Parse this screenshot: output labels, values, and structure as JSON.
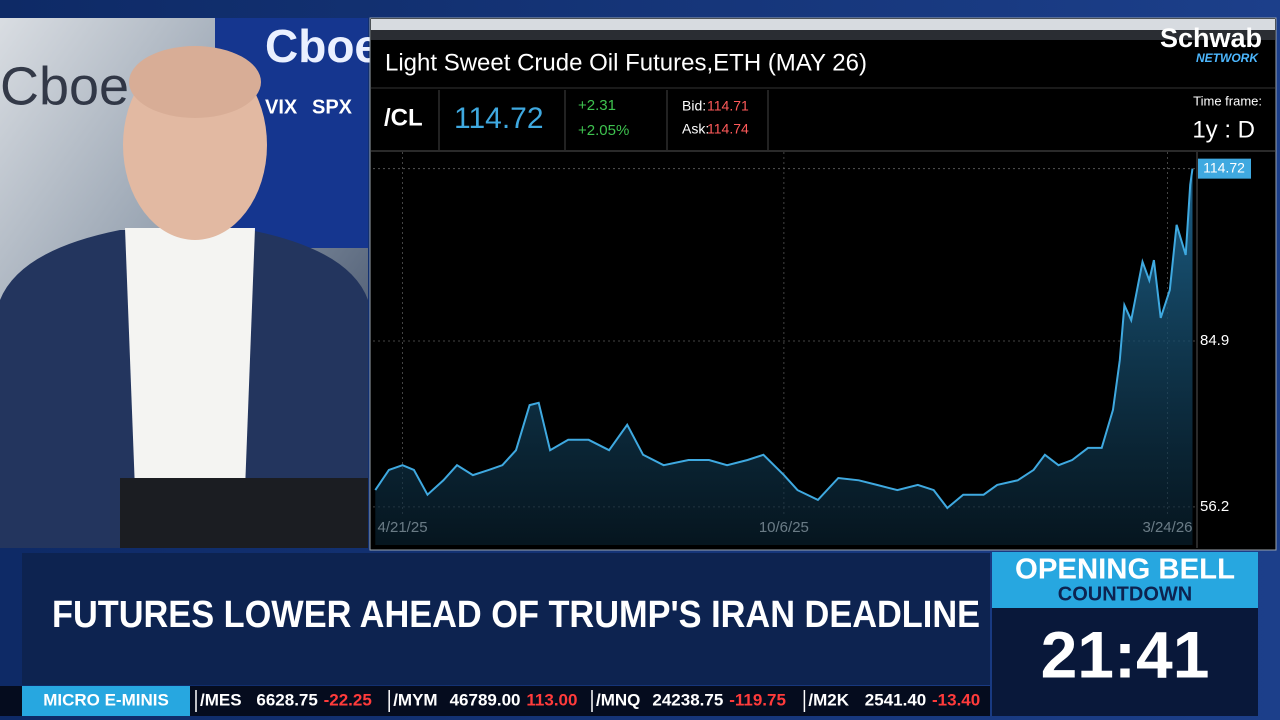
{
  "chart_data": {
    "type": "line",
    "title": "Light Sweet Crude Oil Futures,ETH (MAY 26)",
    "x": [
      "4/9/25",
      "4/15/25",
      "4/21/25",
      "4/26/25",
      "5/2/25",
      "5/9/25",
      "5/15/25",
      "5/22/25",
      "5/29/25",
      "6/4/25",
      "6/10/25",
      "6/16/25",
      "6/20/25",
      "6/25/25",
      "7/3/25",
      "7/12/25",
      "7/21/25",
      "7/29/25",
      "8/5/25",
      "8/14/25",
      "8/25/25",
      "9/3/25",
      "9/11/25",
      "9/20/25",
      "9/27/25",
      "10/6/25",
      "10/12/25",
      "10/21/25",
      "10/30/25",
      "11/8/25",
      "11/16/25",
      "11/25/25",
      "12/4/25",
      "12/11/25",
      "12/17/25",
      "12/24/25",
      "1/2/26",
      "1/8/26",
      "1/17/26",
      "1/24/26",
      "1/29/26",
      "2/4/26",
      "2/10/26",
      "2/17/26",
      "2/23/26",
      "2/28/26",
      "3/3/26",
      "3/5/26",
      "3/8/26",
      "3/13/26",
      "3/16/26",
      "3/18/26",
      "3/21/26",
      "3/25/26",
      "3/28/26",
      "4/1/26",
      "4/3/26",
      "4/4/26"
    ],
    "values": [
      59.1,
      62.6,
      63.4,
      62.6,
      58.3,
      60.8,
      63.4,
      61.7,
      62.6,
      63.4,
      66.0,
      73.8,
      74.2,
      66.0,
      67.8,
      67.8,
      66.0,
      70.4,
      65.2,
      63.4,
      64.3,
      64.3,
      63.4,
      64.3,
      65.2,
      61.7,
      59.1,
      57.4,
      61.2,
      60.8,
      60.0,
      59.1,
      60.0,
      59.1,
      56.0,
      58.3,
      58.3,
      60.0,
      60.8,
      62.6,
      65.2,
      63.4,
      64.3,
      66.4,
      66.4,
      73.0,
      81.6,
      91.1,
      88.5,
      98.6,
      95.4,
      98.9,
      88.9,
      93.7,
      105.0,
      99.8,
      111.9,
      114.72
    ],
    "color": "#3fa9e0",
    "xlim": [
      "4/8/25",
      "4/6/26"
    ],
    "xticks": [
      "4/21/25",
      "10/6/25",
      "3/24/26"
    ],
    "ylim": [
      49.6,
      117.6
    ],
    "yticks": [
      56.2,
      84.9
    ],
    "grid": true
  },
  "quote": {
    "symbol": "/CL",
    "last": "114.72",
    "change": "+2.31",
    "change_pct": "+2.05%",
    "bid_label": "Bid:",
    "bid": "114.71",
    "ask_label": "Ask:",
    "ask": "114.74",
    "timeframe_label": "Time frame:",
    "timeframe": "1y : D"
  },
  "logo": {
    "name": "Schwab",
    "sub": "NETWORK"
  },
  "backdrop": {
    "brand": "Cboe",
    "indices": [
      "VIX",
      "SPX"
    ]
  },
  "headline": "FUTURES LOWER AHEAD OF TRUMP'S IRAN DEADLINE",
  "countdown": {
    "title": "OPENING BELL",
    "subtitle": "COUNTDOWN",
    "time": "21:41"
  },
  "ticker": {
    "label": "MICRO E-MINIS",
    "items": [
      {
        "symbol": "/MES",
        "price": "6628.75",
        "change": "-22.25"
      },
      {
        "symbol": "/MYM",
        "price": "46789.00",
        "change": "113.00"
      },
      {
        "symbol": "/MNQ",
        "price": "24238.75",
        "change": "-119.75"
      },
      {
        "symbol": "/M2K",
        "price": "2541.40",
        "change": "-13.40"
      }
    ]
  }
}
